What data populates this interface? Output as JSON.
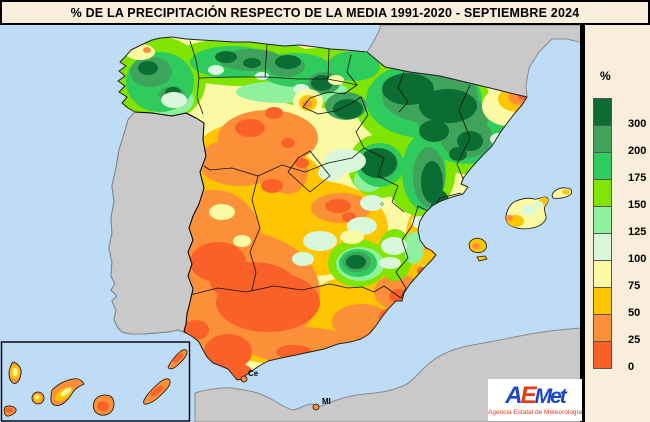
{
  "title": "% DE LA PRECIPITACIÓN RESPECTO DE LA MEDIA 1991-2020 - SEPTIEMBRE 2024",
  "legend": {
    "unit": "%",
    "stops": [
      {
        "color": "#0c6d33",
        "label": "300"
      },
      {
        "color": "#3fa35c",
        "label": "200"
      },
      {
        "color": "#2fcb5c",
        "label": "175"
      },
      {
        "color": "#7ee400",
        "label": "150"
      },
      {
        "color": "#8ff09e",
        "label": "125"
      },
      {
        "color": "#d9f7da",
        "label": "100"
      },
      {
        "color": "#fcf9a4",
        "label": "75"
      },
      {
        "color": "#fec500",
        "label": "50"
      },
      {
        "color": "#fc9038",
        "label": "25"
      },
      {
        "color": "#fa6128",
        "label": "0"
      }
    ]
  },
  "map": {
    "labels": {
      "ceuta": "Ce",
      "melilla": "Ml"
    },
    "colors": {
      "sea": "#bfdcf6",
      "no_data_land": "#c9c9c9",
      "coastline_gray": "#8a8a8a",
      "panel_background": "#f8eedb",
      "border_black": "#000000"
    },
    "regions_reading": [
      {
        "area": "Galicia and Cantabrian coast",
        "percent_of_normal": "150-300"
      },
      {
        "area": "Navarra, La Rioja mountains, Aragón, Pyrenees (Ebro basin)",
        "percent_of_normal": "200-300+"
      },
      {
        "area": "Western Catalonia",
        "percent_of_normal": "175-300"
      },
      {
        "area": "NE Catalonia (Girona coast)",
        "percent_of_normal": "25-75"
      },
      {
        "area": "SW Castilla y León (Salamanca-Valladolid-Ávila)",
        "percent_of_normal": "0-50"
      },
      {
        "area": "Extremadura and Guadalquivir valley (W Andalucía)",
        "percent_of_normal": "0-25"
      },
      {
        "area": "Central plateau (La Mancha) and east of Madrid",
        "percent_of_normal": "50-125"
      },
      {
        "area": "Sierra de Cazorla pocket (Jaén)",
        "percent_of_normal": "200-300"
      },
      {
        "area": "Murcia and Almería coast",
        "percent_of_normal": "0-50"
      },
      {
        "area": "Balearic Islands",
        "percent_of_normal": "50-125"
      },
      {
        "area": "Canary Islands",
        "percent_of_normal": "0-50"
      }
    ]
  },
  "logo": {
    "letter_a": "A",
    "letter_e": "E",
    "letters_met": "Met",
    "subtitle": "Agencia Estatal de Meteorología",
    "blue": "#1c46c8",
    "red": "#e83917"
  }
}
